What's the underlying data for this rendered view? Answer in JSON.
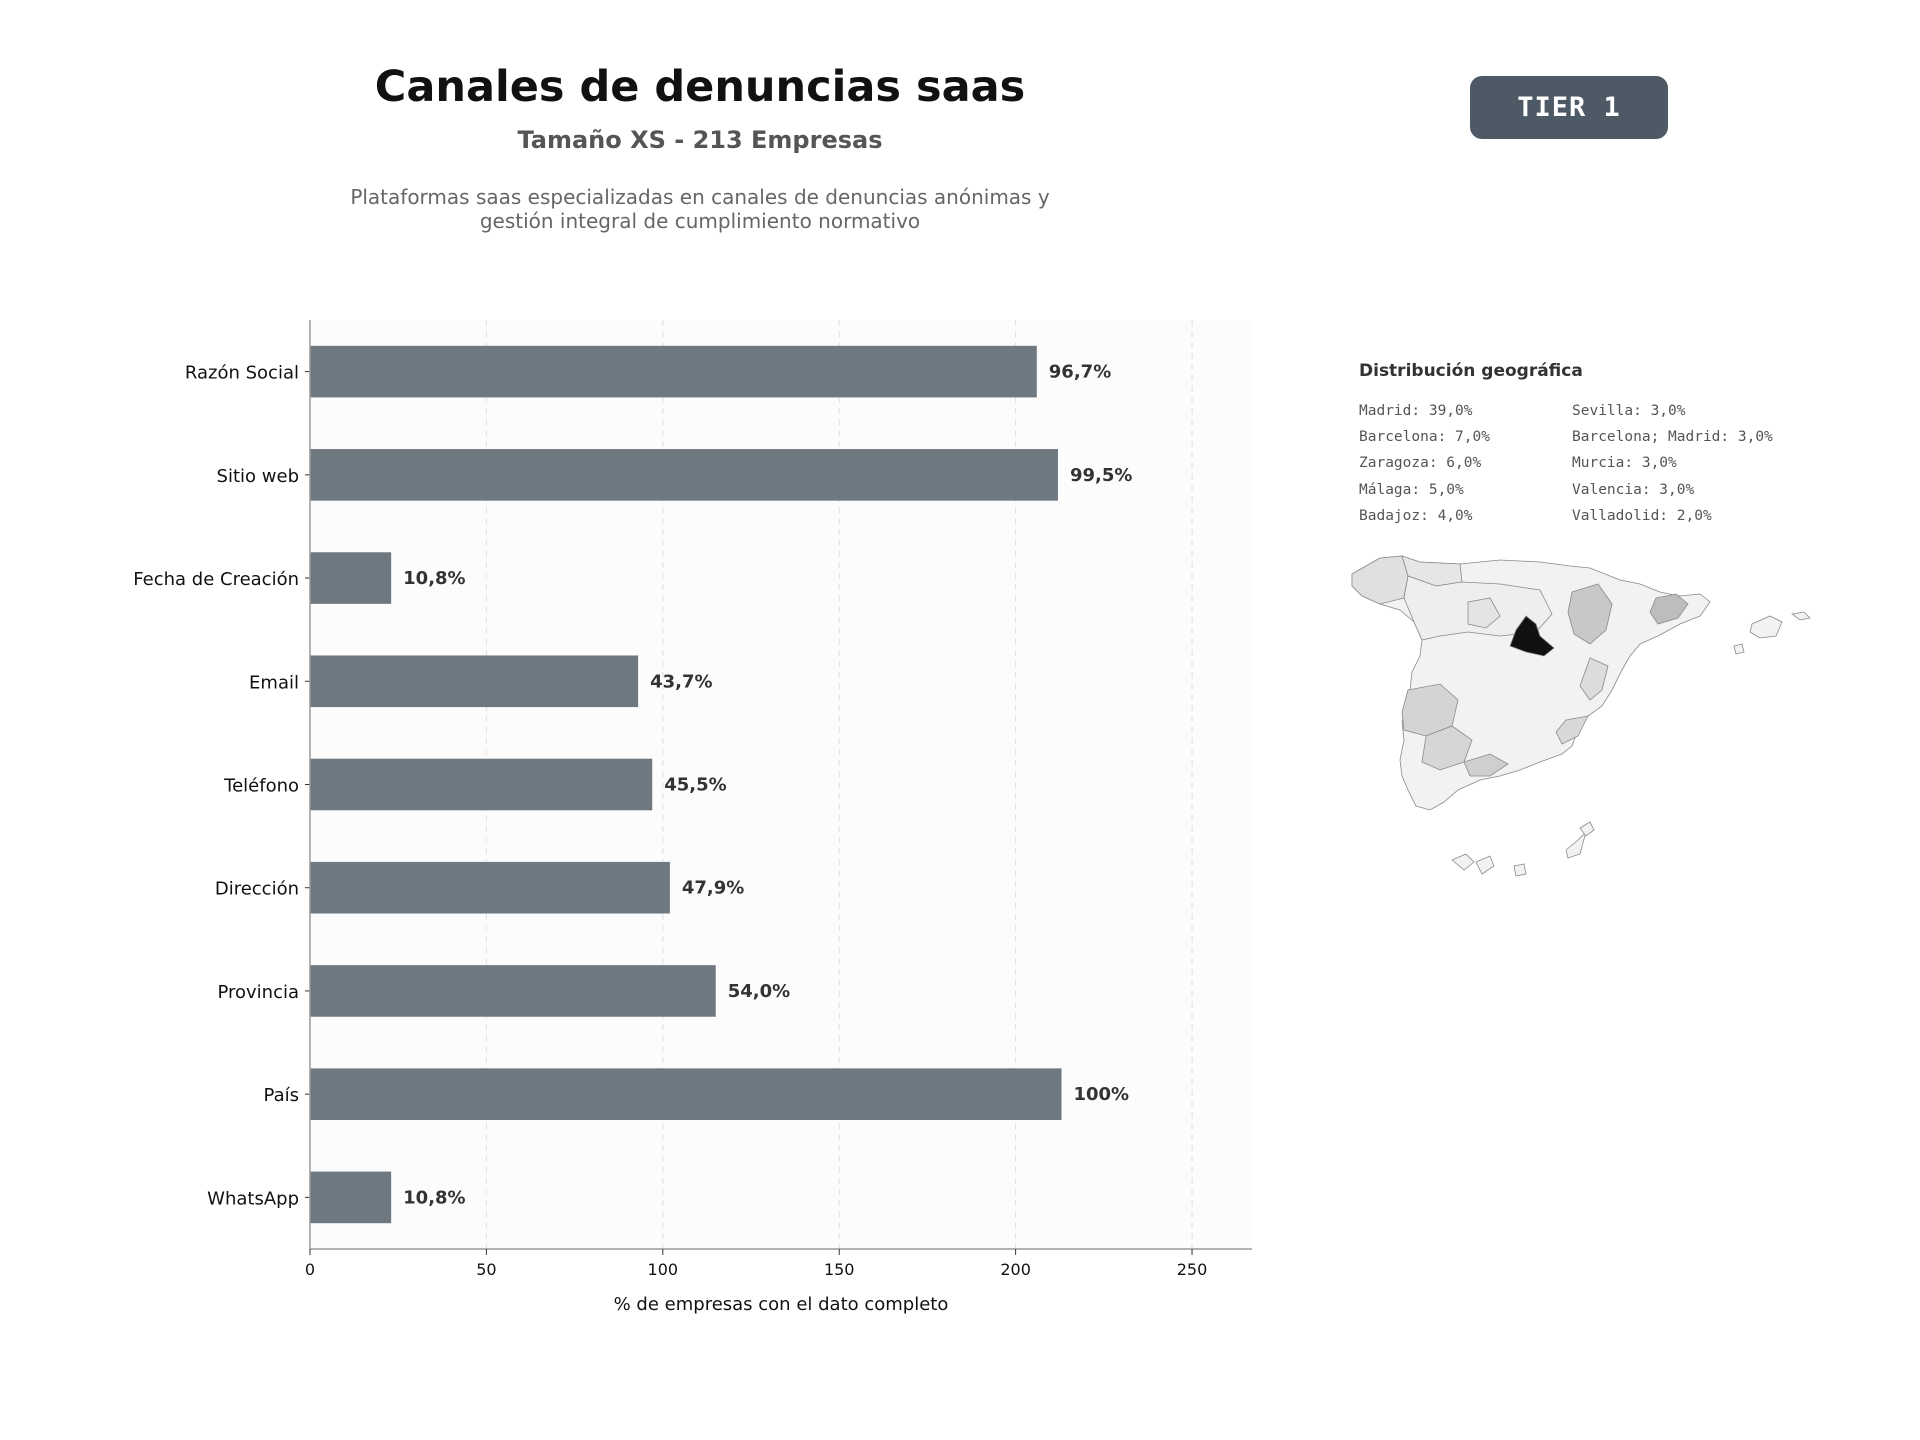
{
  "header": {
    "title": "Canales de denuncias saas",
    "subtitle": "Tamaño XS - 213 Empresas",
    "description_line1": "Plataformas saas especializadas en canales de denuncias anónimas y",
    "description_line2": "gestión integral de cumplimiento normativo",
    "tier_badge": "TIER 1"
  },
  "chart_data": {
    "type": "bar",
    "orientation": "horizontal",
    "categories": [
      "Razón Social",
      "Sitio web",
      "Fecha de Creación",
      "Email",
      "Teléfono",
      "Dirección",
      "Provincia",
      "País",
      "WhatsApp"
    ],
    "values": [
      206,
      212,
      23,
      93,
      97,
      102,
      115,
      213,
      23
    ],
    "data_labels": [
      "96,7%",
      "99,5%",
      "10,8%",
      "43,7%",
      "45,5%",
      "47,9%",
      "54,0%",
      "100%",
      "10,8%"
    ],
    "xlabel": "% de empresas con el dato completo",
    "ylabel": "",
    "xlim": [
      0,
      267
    ],
    "xticks": [
      0,
      50,
      100,
      150,
      200,
      250
    ],
    "grid": true,
    "bar_color": "#6e7881"
  },
  "geo": {
    "title": "Distribución geográfica",
    "col1": [
      "Madrid: 39,0%",
      "Barcelona: 7,0%",
      "Zaragoza: 6,0%",
      "Málaga: 5,0%",
      "Badajoz: 4,0%"
    ],
    "col2": [
      "Sevilla: 3,0%",
      "Barcelona; Madrid: 3,0%",
      "Murcia: 3,0%",
      "Valencia: 3,0%",
      "Valladolid: 2,0%"
    ],
    "map_highlight_color": "#111111"
  }
}
